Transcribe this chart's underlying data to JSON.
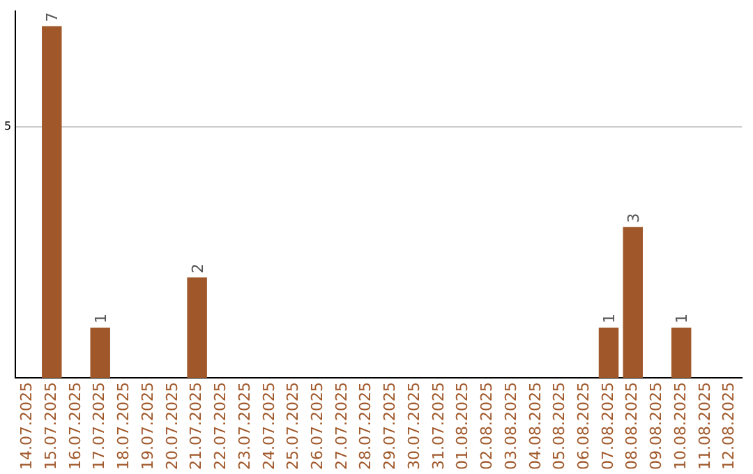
{
  "chart_data": {
    "type": "bar",
    "categories": [
      "14.07.2025",
      "15.07.2025",
      "16.07.2025",
      "17.07.2025",
      "18.07.2025",
      "19.07.2025",
      "20.07.2025",
      "21.07.2025",
      "22.07.2025",
      "23.07.2025",
      "24.07.2025",
      "25.07.2025",
      "26.07.2025",
      "27.07.2025",
      "28.07.2025",
      "29.07.2025",
      "30.07.2025",
      "31.07.2025",
      "01.08.2025",
      "02.08.2025",
      "03.08.2025",
      "04.08.2025",
      "05.08.2025",
      "06.08.2025",
      "07.08.2025",
      "08.08.2025",
      "09.08.2025",
      "10.08.2025",
      "11.08.2025",
      "12.08.2025"
    ],
    "values": [
      0,
      7,
      0,
      1,
      0,
      0,
      0,
      2,
      0,
      0,
      0,
      0,
      0,
      0,
      0,
      0,
      0,
      0,
      0,
      0,
      0,
      0,
      0,
      0,
      1,
      3,
      0,
      1,
      0,
      0
    ],
    "color": "#a0582a",
    "value_labels": [
      null,
      "7",
      null,
      "1",
      null,
      null,
      null,
      "2",
      null,
      null,
      null,
      null,
      null,
      null,
      null,
      null,
      null,
      null,
      null,
      null,
      null,
      null,
      null,
      null,
      "1",
      "3",
      null,
      "1",
      null,
      null
    ],
    "ylim": [
      0,
      7.3
    ],
    "yticks": [
      5
    ],
    "grid": "y",
    "legend": false
  }
}
